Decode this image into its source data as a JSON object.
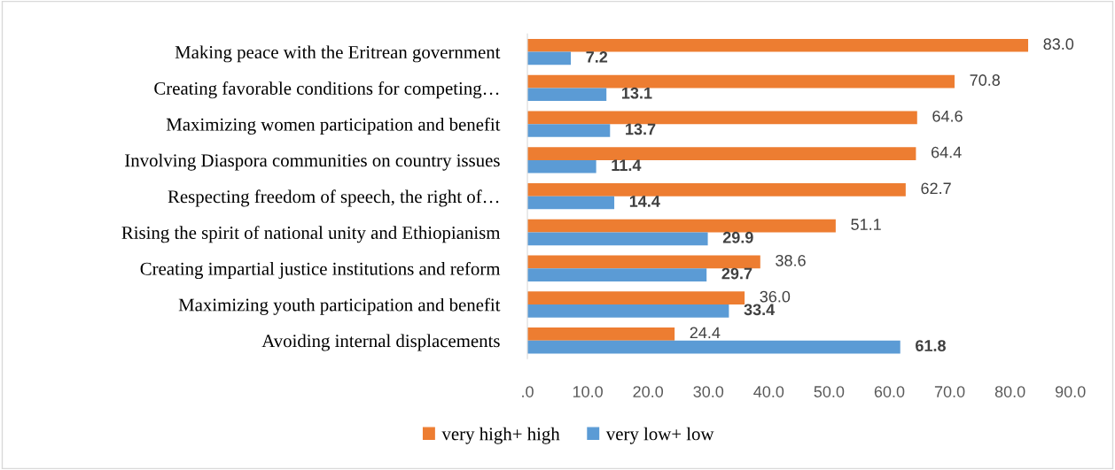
{
  "chart_data": {
    "type": "bar",
    "orientation": "horizontal",
    "categories": [
      "Making peace with the Eritrean government",
      "Creating favorable conditions for competing…",
      "Maximizing women participation and benefit",
      "Involving Diaspora communities on country issues",
      "Respecting freedom of speech, the right of…",
      "Rising the spirit of national unity and Ethiopianism",
      "Creating impartial justice institutions and reform",
      "Maximizing youth participation and benefit",
      "Avoiding internal displacements"
    ],
    "series": [
      {
        "name": "very high+ high",
        "color": "#ed7d31",
        "values": [
          83.0,
          70.8,
          64.6,
          64.4,
          62.7,
          51.1,
          38.6,
          36.0,
          24.4
        ],
        "value_labels": [
          "83.0",
          "70.8",
          "64.6",
          "64.4",
          "62.7",
          "51.1",
          "38.6",
          "36.0",
          "24.4"
        ]
      },
      {
        "name": "very low+ low",
        "color": "#5b9bd5",
        "values": [
          7.2,
          13.1,
          13.7,
          11.4,
          14.4,
          29.9,
          29.7,
          33.4,
          61.8
        ],
        "value_labels": [
          "7.2",
          "13.1",
          "13.7",
          "11.4",
          "14.4",
          "29.9",
          "29.7",
          "33.4",
          "61.8"
        ]
      }
    ],
    "xlim": [
      0,
      90
    ],
    "xticks": [
      {
        "value": 0,
        "label": ".0"
      },
      {
        "value": 10,
        "label": "10.0"
      },
      {
        "value": 20,
        "label": "20.0"
      },
      {
        "value": 30,
        "label": "30.0"
      },
      {
        "value": 40,
        "label": "40.0"
      },
      {
        "value": 50,
        "label": "50.0"
      },
      {
        "value": 60,
        "label": "60.0"
      },
      {
        "value": 70,
        "label": "70.0"
      },
      {
        "value": 80,
        "label": "80.0"
      },
      {
        "value": 90,
        "label": "90.0"
      }
    ],
    "grid": false,
    "legend": "bottom"
  }
}
